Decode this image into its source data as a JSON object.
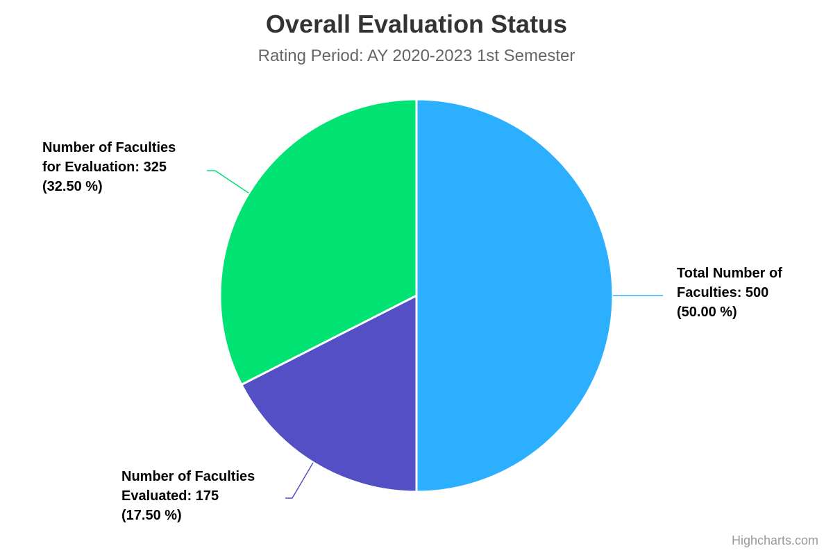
{
  "chart_data": {
    "type": "pie",
    "title": "Overall Evaluation Status",
    "subtitle": "Rating Period: AY 2020-2023 1st Semester",
    "slices": [
      {
        "name": "Total Number of Faculties",
        "value": 500,
        "percent": "50.00 %",
        "color": "#2caffe",
        "label_lines": [
          "Total Number of",
          "Faculties: 500",
          "(50.00 %)"
        ]
      },
      {
        "name": "Number of Faculties Evaluated",
        "value": 175,
        "percent": "17.50 %",
        "color": "#544fc5",
        "label_lines": [
          "Number of Faculties",
          "Evaluated: 175",
          "(17.50 %)"
        ]
      },
      {
        "name": "Number of Faculties for Evaluation",
        "value": 325,
        "percent": "32.50 %",
        "color": "#00e272",
        "label_lines": [
          "Number of Faculties",
          "for Evaluation: 325",
          "(32.50 %)"
        ]
      }
    ]
  },
  "credits": "Highcharts.com"
}
